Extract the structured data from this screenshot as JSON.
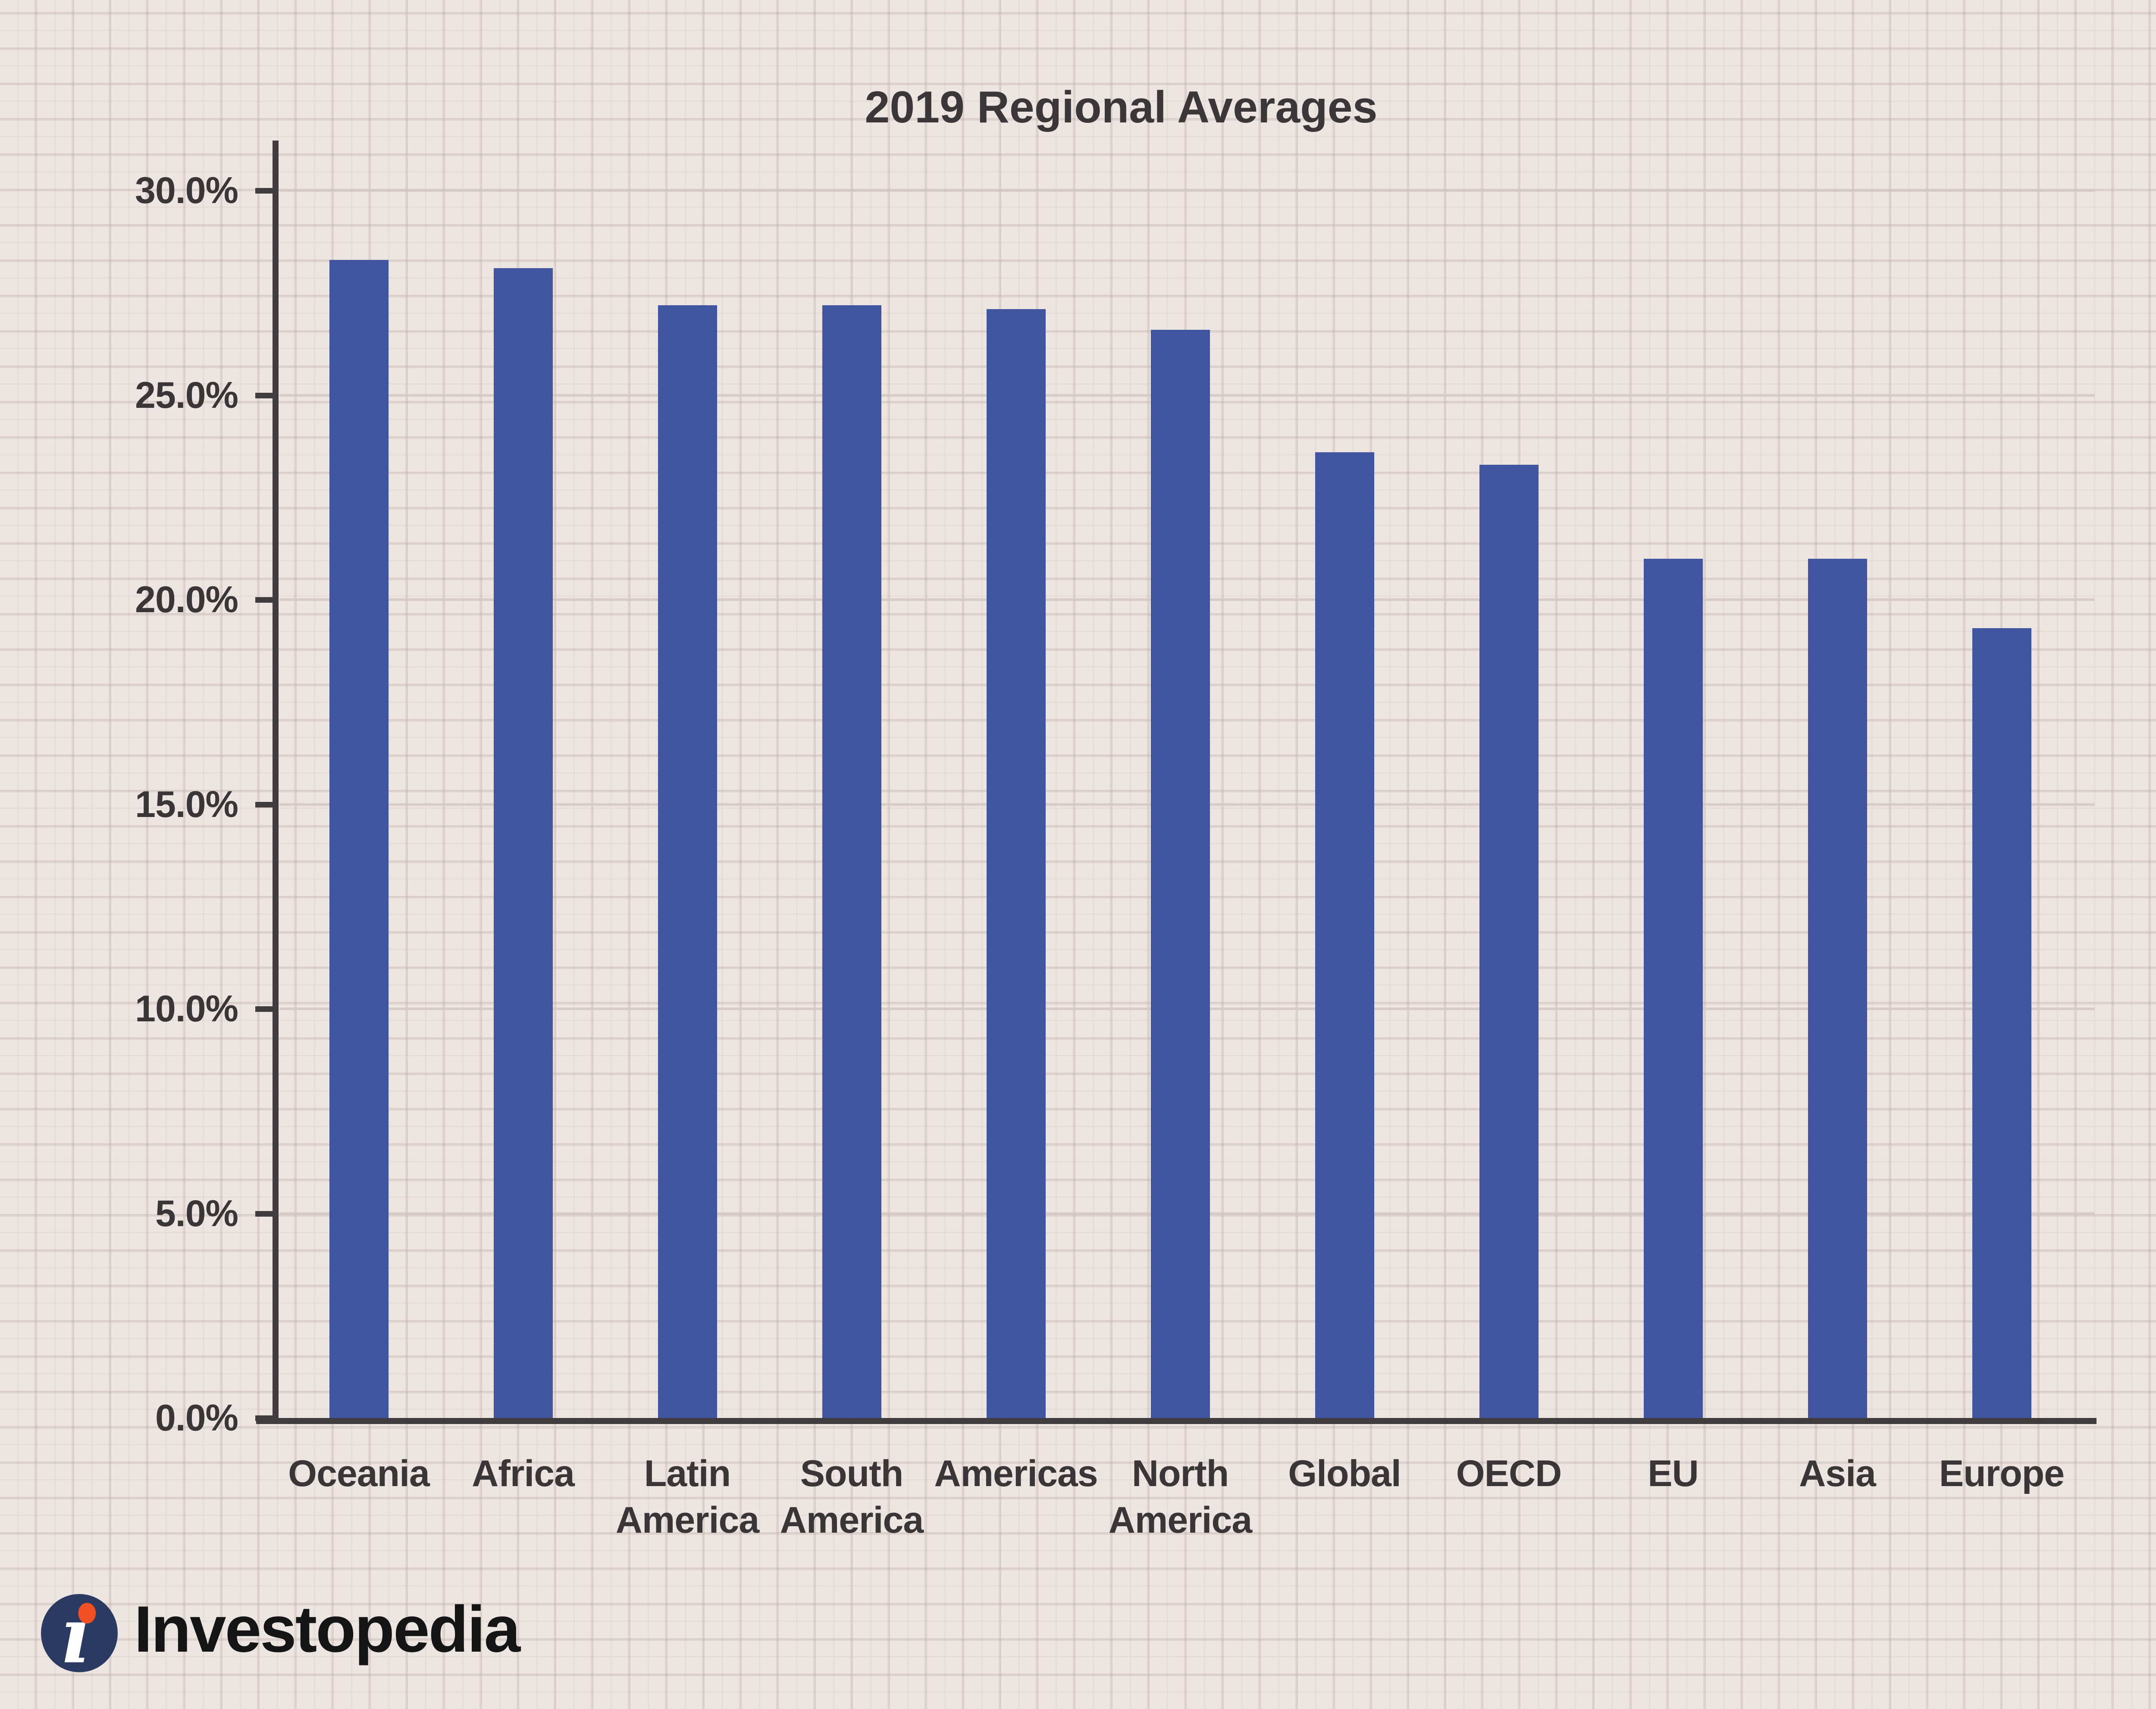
{
  "page": {
    "background_color": "#EDE5E2",
    "grid_paper_line_color": "#DDD2CF"
  },
  "chart_data": {
    "type": "bar",
    "title": "2019 Regional Averages",
    "categories": [
      "Oceania",
      "Africa",
      "Latin\nAmerica",
      "South\nAmerica",
      "Americas",
      "North\nAmerica",
      "Global",
      "OECD",
      "EU",
      "Asia",
      "Europe"
    ],
    "values": [
      28.3,
      28.1,
      27.2,
      27.2,
      27.1,
      26.6,
      23.6,
      23.3,
      21.0,
      21.0,
      19.3
    ],
    "unit": "%",
    "xlabel": "",
    "ylabel": "",
    "ylim": [
      0,
      30
    ],
    "ytick_step": 5,
    "ytick_labels": [
      "0.0%",
      "5.0%",
      "10.0%",
      "15.0%",
      "20.0%",
      "25.0%",
      "30.0%"
    ],
    "grid": true,
    "legend_position": "none",
    "bar_color": "#4054A1",
    "axis_color": "#403C3D",
    "gridline_color": "#D2C8C5",
    "text_color": "#3A3637"
  },
  "branding": {
    "logo_text": "Investopedia",
    "logo_mark_icon": "investopedia-i-icon",
    "logo_circle_navy": "#2B3A60",
    "logo_dot_orange": "#F04E23",
    "logo_glyph_white": "#FFFFFF"
  }
}
